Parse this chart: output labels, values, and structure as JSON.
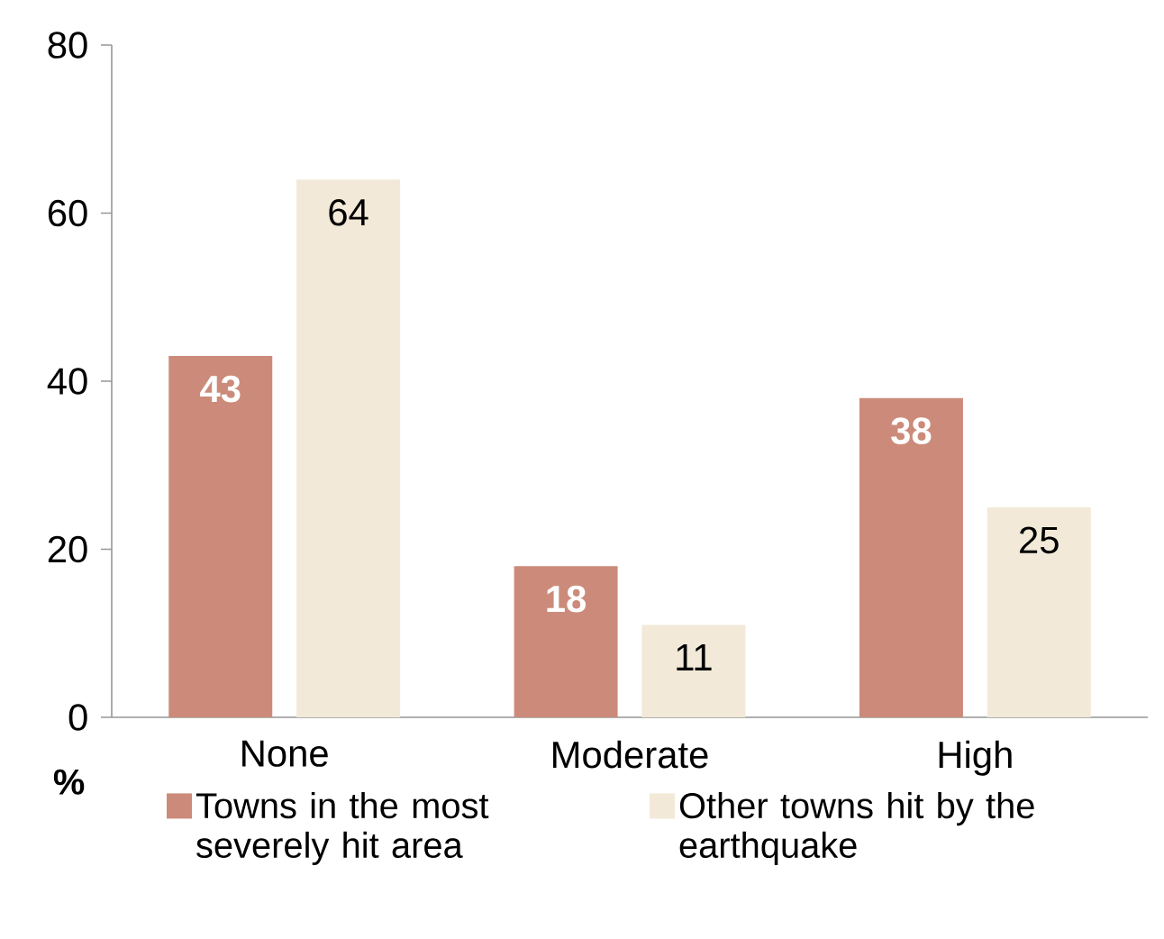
{
  "chart_data": {
    "type": "bar",
    "ylabel": "%",
    "categories": [
      "None",
      "Moderate",
      "High"
    ],
    "series": [
      {
        "name": "Towns in the most severely hit area",
        "color": "#cc8b7a",
        "values": [
          43,
          18,
          38
        ]
      },
      {
        "name": "Other towns hit by the earthquake",
        "color": "#f2e9d8",
        "values": [
          64,
          11,
          25
        ]
      }
    ],
    "ylim": [
      0,
      80
    ],
    "yticks": [
      0,
      20,
      40,
      60,
      80
    ],
    "data_labels": true,
    "legend": "bottom"
  }
}
